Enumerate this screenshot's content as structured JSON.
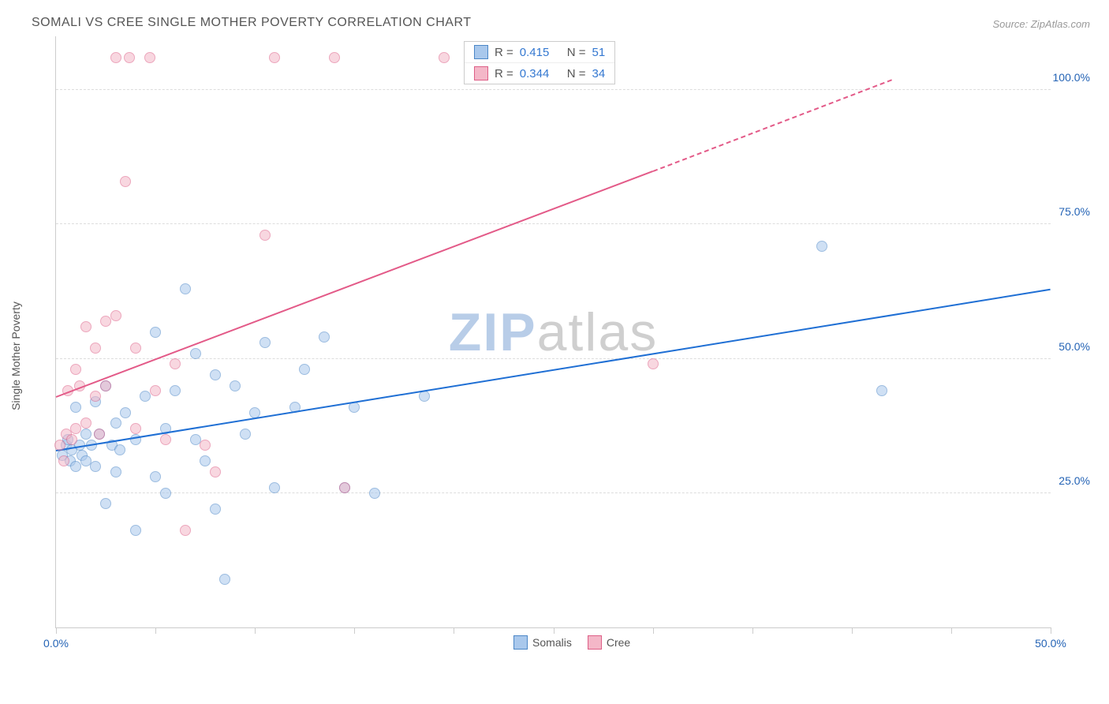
{
  "title": "SOMALI VS CREE SINGLE MOTHER POVERTY CORRELATION CHART",
  "source": "Source: ZipAtlas.com",
  "y_axis_label": "Single Mother Poverty",
  "watermark_zip": "ZIP",
  "watermark_atlas": "atlas",
  "chart": {
    "type": "scatter",
    "xlim": [
      0,
      50
    ],
    "ylim": [
      0,
      110
    ],
    "x_ticks": [
      0,
      5,
      10,
      15,
      20,
      25,
      30,
      35,
      40,
      45,
      50
    ],
    "x_tick_labels": {
      "0": "0.0%",
      "50": "50.0%"
    },
    "y_gridlines": [
      25,
      50,
      75,
      100
    ],
    "y_grid_labels": {
      "25": "25.0%",
      "50": "50.0%",
      "75": "75.0%",
      "100": "100.0%"
    },
    "grid_color": "#dddddd",
    "axis_color": "#cccccc",
    "label_color_axis": "#2463b5",
    "point_radius": 7,
    "series": [
      {
        "name": "Somalis",
        "fill": "#a9c8ec",
        "stroke": "#4c87c7",
        "fill_opacity": 0.55,
        "r_value": "0.415",
        "n_value": "51",
        "trend": {
          "x1": 0,
          "y1": 33,
          "x2": 50,
          "y2": 63,
          "color": "#1f6fd4",
          "width": 2
        },
        "points": [
          [
            0.3,
            32
          ],
          [
            0.5,
            34
          ],
          [
            0.6,
            35
          ],
          [
            0.7,
            31
          ],
          [
            0.8,
            33
          ],
          [
            1.0,
            30
          ],
          [
            1.0,
            41
          ],
          [
            1.2,
            34
          ],
          [
            1.3,
            32
          ],
          [
            1.5,
            36
          ],
          [
            1.5,
            31
          ],
          [
            1.8,
            34
          ],
          [
            2.0,
            42
          ],
          [
            2.0,
            30
          ],
          [
            2.2,
            36
          ],
          [
            2.5,
            45
          ],
          [
            2.5,
            23
          ],
          [
            2.8,
            34
          ],
          [
            3.0,
            38
          ],
          [
            3.0,
            29
          ],
          [
            3.2,
            33
          ],
          [
            3.5,
            40
          ],
          [
            4.0,
            18
          ],
          [
            4.0,
            35
          ],
          [
            4.5,
            43
          ],
          [
            5.0,
            28
          ],
          [
            5.0,
            55
          ],
          [
            5.5,
            37
          ],
          [
            5.5,
            25
          ],
          [
            6.0,
            44
          ],
          [
            6.5,
            63
          ],
          [
            7.0,
            35
          ],
          [
            7.0,
            51
          ],
          [
            7.5,
            31
          ],
          [
            8.0,
            22
          ],
          [
            8.0,
            47
          ],
          [
            8.5,
            9
          ],
          [
            9.0,
            45
          ],
          [
            9.5,
            36
          ],
          [
            10.0,
            40
          ],
          [
            10.5,
            53
          ],
          [
            11.0,
            26
          ],
          [
            12.0,
            41
          ],
          [
            12.5,
            48
          ],
          [
            13.5,
            54
          ],
          [
            14.5,
            26
          ],
          [
            15.0,
            41
          ],
          [
            16.0,
            25
          ],
          [
            18.5,
            43
          ],
          [
            38.5,
            71
          ],
          [
            41.5,
            44
          ]
        ]
      },
      {
        "name": "Cree",
        "fill": "#f4b7c8",
        "stroke": "#dd5f87",
        "fill_opacity": 0.55,
        "r_value": "0.344",
        "n_value": "34",
        "trend_solid": {
          "x1": 0,
          "y1": 43,
          "x2": 30,
          "y2": 85,
          "color": "#e35a88",
          "width": 2
        },
        "trend_dash": {
          "x1": 30,
          "y1": 85,
          "x2": 42,
          "y2": 102,
          "color": "#e35a88",
          "width": 2
        },
        "points": [
          [
            0.2,
            34
          ],
          [
            0.4,
            31
          ],
          [
            0.5,
            36
          ],
          [
            0.6,
            44
          ],
          [
            0.8,
            35
          ],
          [
            1.0,
            48
          ],
          [
            1.0,
            37
          ],
          [
            1.2,
            45
          ],
          [
            1.5,
            56
          ],
          [
            1.5,
            38
          ],
          [
            2.0,
            43
          ],
          [
            2.0,
            52
          ],
          [
            2.2,
            36
          ],
          [
            2.5,
            57
          ],
          [
            2.5,
            45
          ],
          [
            3.0,
            58
          ],
          [
            3.0,
            106
          ],
          [
            3.7,
            106
          ],
          [
            3.5,
            83
          ],
          [
            4.0,
            52
          ],
          [
            4.0,
            37
          ],
          [
            4.7,
            106
          ],
          [
            5.0,
            44
          ],
          [
            5.5,
            35
          ],
          [
            6.0,
            49
          ],
          [
            6.5,
            18
          ],
          [
            7.5,
            34
          ],
          [
            8.0,
            29
          ],
          [
            10.5,
            73
          ],
          [
            11.0,
            106
          ],
          [
            14.0,
            106
          ],
          [
            14.5,
            26
          ],
          [
            19.5,
            106
          ],
          [
            30.0,
            49
          ]
        ]
      }
    ],
    "stat_labels": {
      "r": "R =",
      "n": "N ="
    },
    "stat_value_color": "#3478d1",
    "stat_label_color": "#555555"
  },
  "legend": [
    {
      "label": "Somalis",
      "fill": "#a9c8ec",
      "stroke": "#4c87c7"
    },
    {
      "label": "Cree",
      "fill": "#f4b7c8",
      "stroke": "#dd5f87"
    }
  ],
  "colors": {
    "watermark_zip": "#b8cde8",
    "watermark_atlas": "#cfcfcf"
  }
}
